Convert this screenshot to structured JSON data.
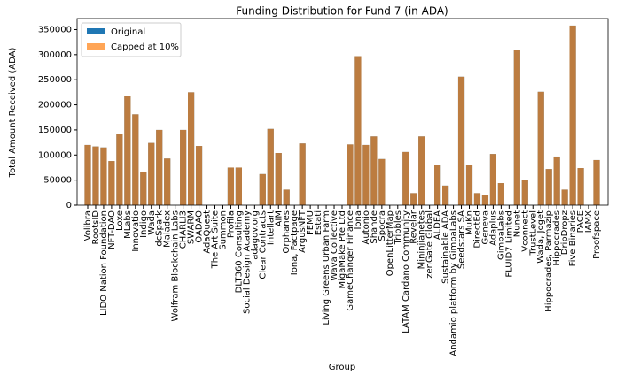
{
  "chart_data": {
    "type": "bar",
    "title": "Funding Distribution for Fund 7 (in ADA)",
    "x_label": "Group",
    "y_label": "Total Amount Received (ADA)",
    "categories": [
      "Volibra",
      "RootsID",
      "LIDO Nation Foundation",
      "NFT-DAO",
      "Loxe",
      "MLabs",
      "Innovatio",
      "Indigo",
      "Wada",
      "dcSpark",
      "Maladex",
      "Wolfram Blockchain Labs",
      "CHARLI3",
      "SWARM",
      "OADAO",
      "AdaQuest",
      "The Art Suite",
      "Summon",
      "Profila",
      "DLT360 Consulting",
      "Social Design Academy",
      "adagov.org",
      "Clear Contracts",
      "Intellart",
      "AIM",
      "Orphanes",
      "Iona, Factpage",
      "ArgusNFT",
      "FEMU",
      "Estati",
      "Living Greens Urban Farm",
      "Wava Collective",
      "MigaMake Pte Ltd",
      "GameChanger Finance",
      "Iona",
      "Autonio",
      "Shande",
      "Spocra",
      "OpenLitterMap",
      "Tribbles",
      "LATAM Cardano Community",
      "Revelar",
      "Mininjianetes",
      "zenGate Global",
      "ALDEA",
      "Sustainable ADA",
      "Andamio platform by GimbaLabs",
      "Seedstars SA",
      "MuKn",
      "DirectEd",
      "Geneva",
      "Adaplus",
      "GimbaLabs",
      "FLUID7 Limited",
      "Nunet",
      "Vconnect",
      "TrustLevel",
      "Wada, Joget",
      "Hippocrades, Parmazip",
      "Hippocrades",
      "DripDropz",
      "Five Binaries",
      "PACE",
      "IAMX",
      "Proofspace"
    ],
    "series": [
      {
        "name": "Original",
        "color": "#1f77b4",
        "alpha": 1,
        "values": [
          120000,
          117000,
          115000,
          88000,
          142000,
          217000,
          181000,
          67000,
          124000,
          150000,
          93000,
          0,
          150000,
          225000,
          118000,
          0,
          0,
          0,
          75000,
          75000,
          0,
          0,
          62000,
          152000,
          104000,
          31000,
          0,
          123000,
          0,
          0,
          0,
          0,
          0,
          121000,
          297000,
          120000,
          137000,
          92000,
          0,
          0,
          106000,
          24000,
          137000,
          0,
          81000,
          39000,
          0,
          256000,
          81000,
          24000,
          20000,
          102000,
          44000,
          0,
          310000,
          51000,
          0,
          226000,
          72000,
          97000,
          31000,
          358000,
          74000,
          0,
          90000
        ]
      },
      {
        "name": "Capped at 10%",
        "color": "#ff7f0e",
        "alpha": 0.7,
        "values": [
          120000,
          117000,
          115000,
          88000,
          142000,
          217000,
          181000,
          67000,
          124000,
          150000,
          93000,
          0,
          150000,
          225000,
          118000,
          0,
          0,
          0,
          75000,
          75000,
          0,
          0,
          62000,
          152000,
          104000,
          31000,
          0,
          123000,
          0,
          0,
          0,
          0,
          0,
          121000,
          297000,
          120000,
          137000,
          92000,
          0,
          0,
          106000,
          24000,
          137000,
          0,
          81000,
          39000,
          0,
          256000,
          81000,
          24000,
          20000,
          102000,
          44000,
          0,
          310000,
          51000,
          0,
          226000,
          72000,
          97000,
          31000,
          358000,
          74000,
          0,
          90000
        ]
      }
    ],
    "ylim": [
      0,
      372000
    ],
    "yticks": [
      0,
      50000,
      100000,
      150000,
      200000,
      250000,
      300000,
      350000
    ],
    "legend": "upper left"
  }
}
